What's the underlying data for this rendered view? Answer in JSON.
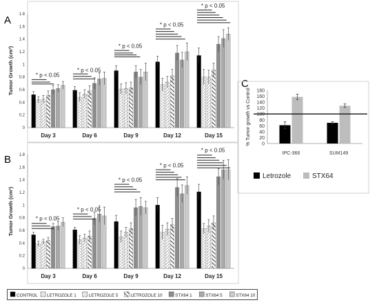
{
  "panel_labels": {
    "a": "A",
    "b": "B",
    "c": "C"
  },
  "sig_text": "* p < 0.05",
  "colors": {
    "control": "#000000",
    "letrozole": "#ffffff",
    "stx64": "#9a9a9a",
    "stx_c": "#bdbdbd",
    "frame": "#d0d0d0",
    "line": "#222222"
  },
  "legend_ab": [
    {
      "label": "CONTROL",
      "pattern": "solid-black"
    },
    {
      "label": "LETROZOLE 1",
      "pattern": "dots"
    },
    {
      "label": "LETROZOLE 5",
      "pattern": "diag-fine"
    },
    {
      "label": "LETROZOLE 10",
      "pattern": "diag-bold"
    },
    {
      "label": "STX64 1",
      "pattern": "gray-dark"
    },
    {
      "label": "STX64 5",
      "pattern": "gray-mid"
    },
    {
      "label": "STX64 10",
      "pattern": "gray-light"
    }
  ],
  "chart_data": [
    {
      "type": "bar",
      "panel": "A",
      "ylabel": "Tumor Growth (cm³)",
      "ylim": [
        0,
        1.8
      ],
      "yticks": [
        "0",
        "0.2",
        "0.4",
        "0.6",
        "0.8",
        "1",
        "1.2",
        "1.4",
        "1.6",
        "1.8"
      ],
      "categories": [
        "Day 3",
        "Day 6",
        "Day 9",
        "Day 12",
        "Day 15"
      ],
      "series": [
        {
          "name": "CONTROL",
          "values": [
            0.52,
            0.59,
            0.9,
            1.04,
            1.14
          ],
          "errors": [
            0.05,
            0.06,
            0.08,
            0.09,
            0.12
          ]
        },
        {
          "name": "LETROZOLE 1",
          "values": [
            0.44,
            0.48,
            0.61,
            0.68,
            0.8
          ],
          "errors": [
            0.05,
            0.07,
            0.08,
            0.1,
            0.12
          ]
        },
        {
          "name": "LETROZOLE 5",
          "values": [
            0.45,
            0.53,
            0.62,
            0.72,
            0.8
          ],
          "errors": [
            0.06,
            0.07,
            0.09,
            0.09,
            0.11
          ]
        },
        {
          "name": "LETROZOLE 10",
          "values": [
            0.51,
            0.58,
            0.63,
            0.82,
            0.91
          ],
          "errors": [
            0.07,
            0.08,
            0.09,
            0.1,
            0.11
          ]
        },
        {
          "name": "STX64 1",
          "values": [
            0.6,
            0.7,
            0.88,
            1.18,
            1.32
          ],
          "errors": [
            0.07,
            0.09,
            0.1,
            0.12,
            0.12
          ]
        },
        {
          "name": "STX64 5",
          "values": [
            0.62,
            0.77,
            0.8,
            1.07,
            1.41
          ],
          "errors": [
            0.06,
            0.1,
            0.12,
            0.12,
            0.14
          ]
        },
        {
          "name": "STX64 10",
          "values": [
            0.67,
            0.78,
            0.88,
            1.2,
            1.48
          ],
          "errors": [
            0.06,
            0.1,
            0.14,
            0.14,
            0.1
          ]
        }
      ]
    },
    {
      "type": "bar",
      "panel": "B",
      "ylabel": "Tumor Growth (cm³)",
      "ylim": [
        0,
        1.8
      ],
      "yticks": [
        "0",
        "0.2",
        "0.4",
        "0.6",
        "0.8",
        "1",
        "1.2",
        "1.4",
        "1.6",
        "1.8"
      ],
      "categories": [
        "Day 3",
        "Day 6",
        "Day 9",
        "Day 12",
        "Day 15"
      ],
      "series": [
        {
          "name": "CONTROL",
          "values": [
            0.53,
            0.61,
            0.74,
            1.0,
            1.21
          ],
          "errors": [
            0.04,
            0.04,
            0.1,
            0.12,
            0.12
          ]
        },
        {
          "name": "LETROZOLE 1",
          "values": [
            0.39,
            0.45,
            0.5,
            0.57,
            0.63
          ],
          "errors": [
            0.04,
            0.07,
            0.09,
            0.11,
            0.08
          ]
        },
        {
          "name": "LETROZOLE 5",
          "values": [
            0.42,
            0.48,
            0.57,
            0.62,
            0.67
          ],
          "errors": [
            0.04,
            0.06,
            0.08,
            0.1,
            0.1
          ]
        },
        {
          "name": "LETROZOLE 10",
          "values": [
            0.44,
            0.51,
            0.63,
            0.69,
            0.72
          ],
          "errors": [
            0.05,
            0.08,
            0.09,
            0.1,
            0.11
          ]
        },
        {
          "name": "STX64 1",
          "values": [
            0.66,
            0.79,
            0.96,
            1.28,
            1.45
          ],
          "errors": [
            0.05,
            0.1,
            0.13,
            0.14,
            0.13
          ]
        },
        {
          "name": "STX64 5",
          "values": [
            0.67,
            0.86,
            0.98,
            1.18,
            1.56
          ],
          "errors": [
            0.07,
            0.13,
            0.14,
            0.14,
            0.15
          ]
        },
        {
          "name": "STX64 10",
          "values": [
            0.73,
            0.83,
            0.96,
            1.31,
            1.56
          ],
          "errors": [
            0.07,
            0.14,
            0.1,
            0.14,
            0.16
          ]
        }
      ]
    },
    {
      "type": "bar",
      "panel": "C",
      "ylabel": "% Tumor growth vs Control",
      "ylim": [
        0,
        180
      ],
      "yticks": [
        "0",
        "20",
        "40",
        "60",
        "80",
        "100",
        "120",
        "140",
        "160",
        "180"
      ],
      "reference_line": 100,
      "categories": [
        "IPC-366",
        "SUM149"
      ],
      "series": [
        {
          "name": "Letrozole",
          "values": [
            62,
            70
          ],
          "errors": [
            12,
            4
          ]
        },
        {
          "name": "STX64",
          "values": [
            158,
            128
          ],
          "errors": [
            9,
            6
          ]
        }
      ]
    }
  ]
}
